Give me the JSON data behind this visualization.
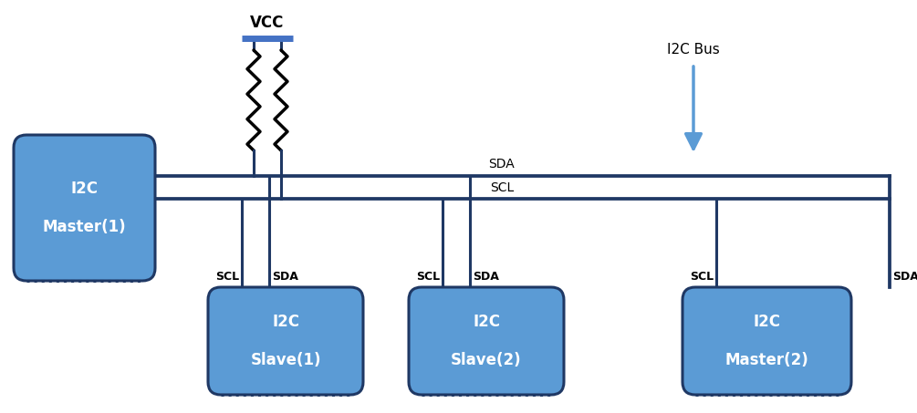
{
  "bg_color": "#ffffff",
  "line_color": "#1F3864",
  "box_fill_color": "#5B9BD5",
  "box_edge_color": "#1F3864",
  "arrow_color": "#5B9BD5",
  "resistor_color": "#000000",
  "vcc_bar_color": "#4472C4",
  "text_color": "#000000",
  "master1_label": "I2C\n\nMaster(1)",
  "slave1_label": "I2C\n\nSlave(1)",
  "slave2_label": "I2C\n\nSlave(2)",
  "master2_label": "I2C\n\nMaster(2)",
  "vcc_label": "VCC",
  "i2c_bus_label": "I2C Bus",
  "sda_label": "SDA",
  "scl_label": "SCL",
  "lw": 2.2
}
